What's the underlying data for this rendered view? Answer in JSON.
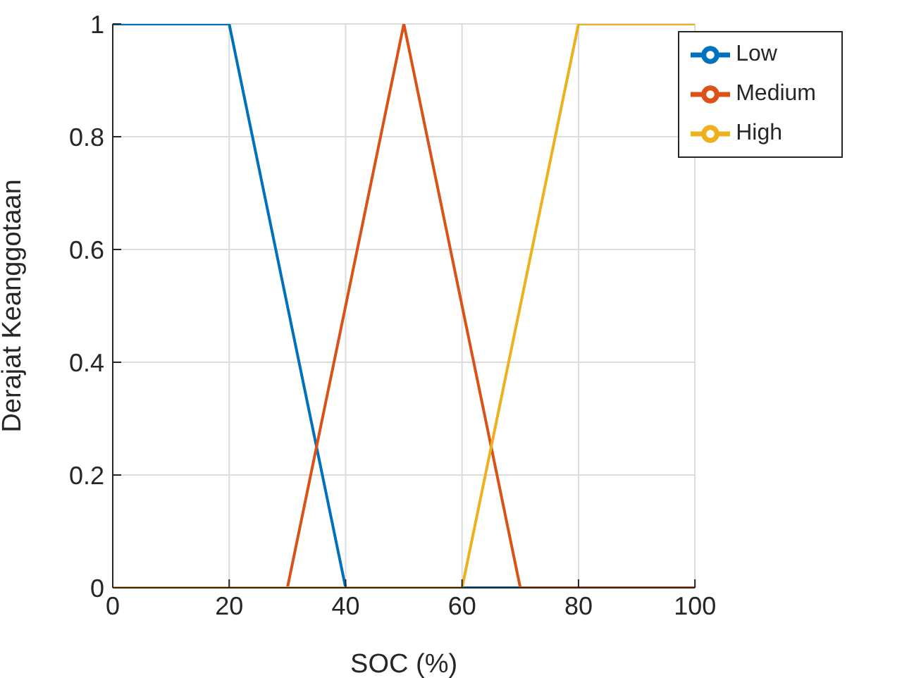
{
  "chart_data": {
    "type": "line",
    "xlabel": "SOC (%)",
    "ylabel": "Derajat Keanggotaan",
    "series": [
      {
        "name": "Low",
        "color": "#0072bd",
        "x": [
          0,
          20,
          40,
          100
        ],
        "values": [
          1,
          1,
          0,
          0
        ]
      },
      {
        "name": "Medium",
        "color": "#d95319",
        "x": [
          0,
          30,
          50,
          70,
          100
        ],
        "values": [
          0,
          0,
          1,
          0,
          0
        ]
      },
      {
        "name": "High",
        "color": "#edb120",
        "x": [
          0,
          60,
          80,
          100
        ],
        "values": [
          0,
          0,
          1,
          1
        ]
      }
    ],
    "xlim": [
      0,
      100
    ],
    "xticks": [
      0,
      20,
      40,
      60,
      80,
      100
    ],
    "ylim": [
      0,
      1
    ],
    "yticks": [
      0,
      0.2,
      0.4,
      0.6,
      0.8,
      1
    ],
    "grid": true,
    "legend": "top right",
    "marker": "none",
    "line_style": "solid"
  }
}
